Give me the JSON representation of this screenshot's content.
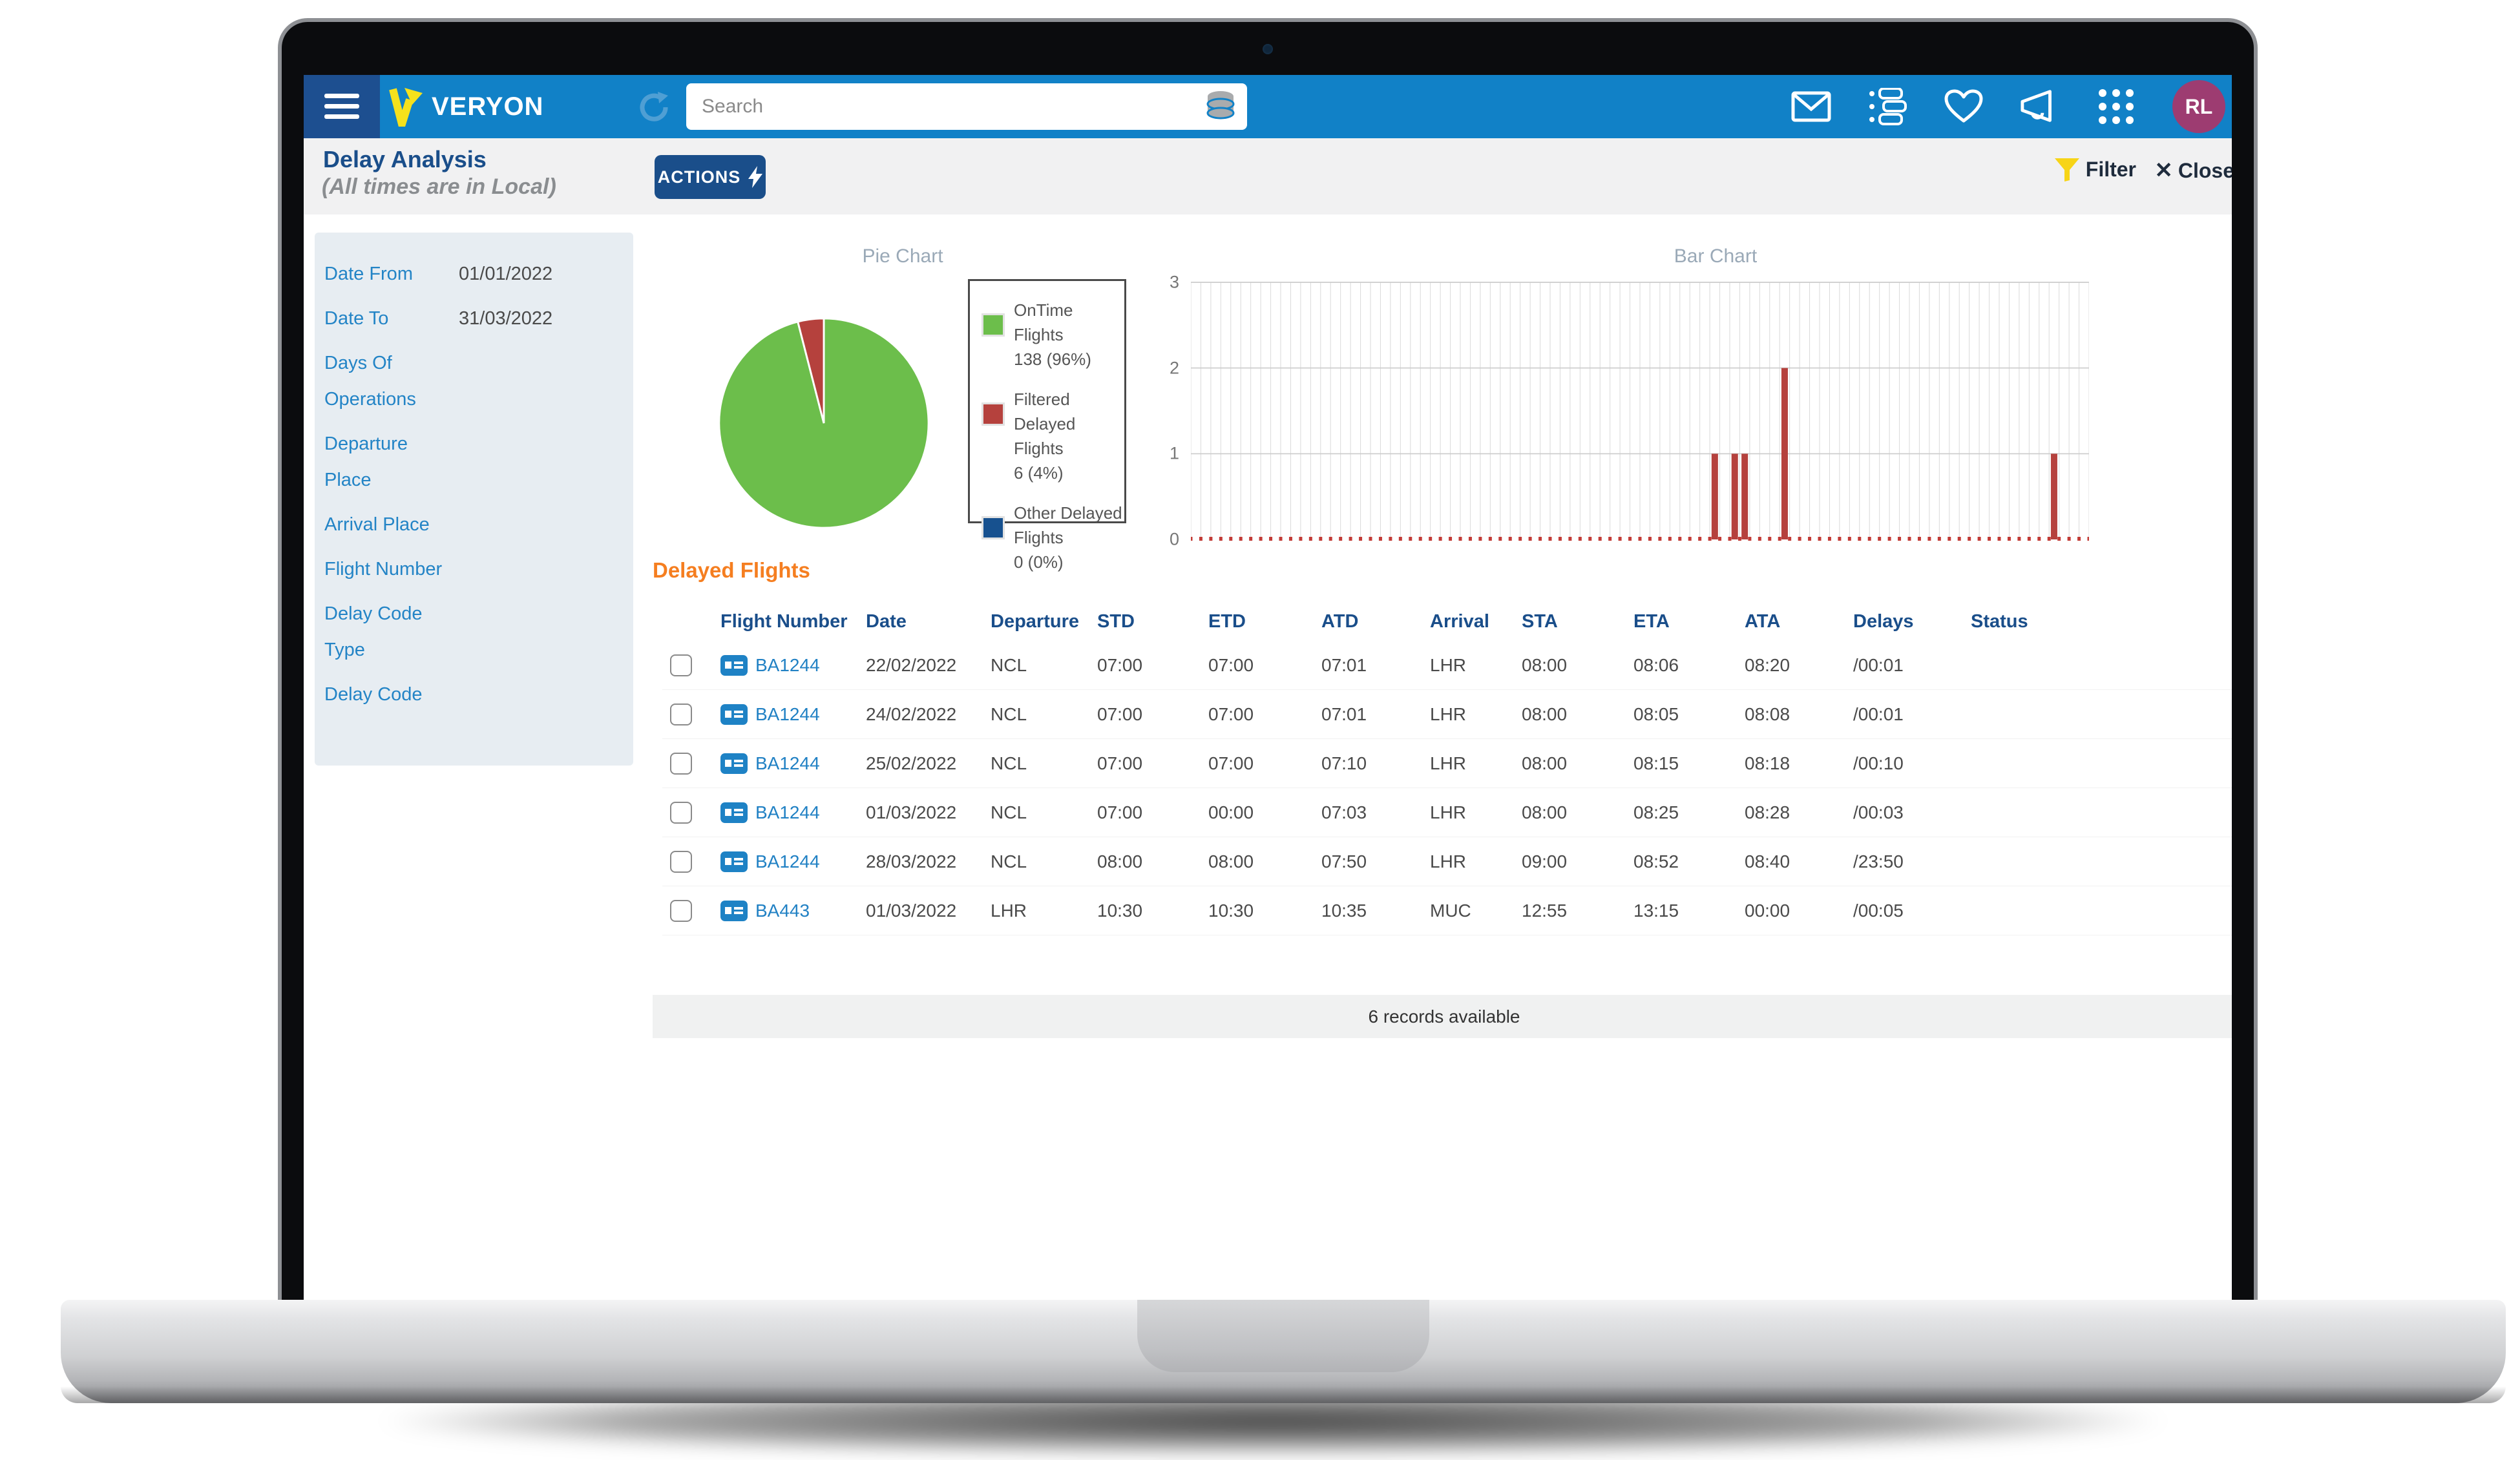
{
  "topbar": {
    "logo_text": "VERYON",
    "search": {
      "placeholder": "Search"
    },
    "icons": [
      "mail-icon",
      "queue-icon",
      "heart-icon",
      "megaphone-icon",
      "apps-grid-icon"
    ],
    "avatar_initials": "RL"
  },
  "page_header": {
    "title": "Delay Analysis",
    "subtitle": "(All times are in Local)",
    "actions_label": "ACTIONS",
    "filter_label": "Filter",
    "close_x": "✕",
    "close_label": "Close"
  },
  "sidebar": {
    "filters": [
      {
        "label": "Date From",
        "value": "01/01/2022"
      },
      {
        "label": "Date To",
        "value": "31/03/2022"
      },
      {
        "label": "Days Of Operations",
        "value": ""
      },
      {
        "label": "Departure Place",
        "value": ""
      },
      {
        "label": "Arrival Place",
        "value": ""
      },
      {
        "label": "Flight Number",
        "value": ""
      },
      {
        "label": "Delay Code Type",
        "value": ""
      },
      {
        "label": "Delay Code",
        "value": ""
      }
    ]
  },
  "colors": {
    "topbar_blue": "#1181c7",
    "navy": "#1a4e8a",
    "link_blue": "#2181c4",
    "orange": "#f57e20",
    "pie_green": "#6cbe4b",
    "pie_red": "#b5413d",
    "pie_navy": "#17518f",
    "avatar_plum": "#9d3c71",
    "funnel_yellow": "#f7d417"
  },
  "chart_data": [
    {
      "type": "pie",
      "title": "Pie Chart",
      "legend_position": "right",
      "slices": [
        {
          "label": "OnTime Flights",
          "value": 138,
          "pct": 96,
          "color": "#6cbe4b"
        },
        {
          "label": "Filtered Delayed Flights",
          "value": 6,
          "pct": 4,
          "color": "#b5413d"
        },
        {
          "label": "Other Delayed Flights",
          "value": 0,
          "pct": 0,
          "color": "#17518f"
        }
      ],
      "legend": [
        {
          "label": "OnTime Flights",
          "count_text": "138 (96%)",
          "color": "#6cbe4b"
        },
        {
          "label": "Filtered Delayed Flights",
          "count_text": "6 (4%)",
          "color": "#b5413d"
        },
        {
          "label": "Other Delayed Flights",
          "count_text": "0 (0%)",
          "color": "#17518f"
        }
      ]
    },
    {
      "type": "bar",
      "title": "Bar Chart",
      "x_range": [
        "01/01/2022",
        "31/03/2022"
      ],
      "num_slots": 90,
      "ylim": [
        0,
        3
      ],
      "yticks": [
        3,
        2,
        1,
        0
      ],
      "grid": true,
      "bar_color": "#b5413d",
      "baseline_style": "red-dotted",
      "bars": [
        {
          "date": "22/02/2022",
          "slot": 52,
          "value": 1
        },
        {
          "date": "24/02/2022",
          "slot": 54,
          "value": 1
        },
        {
          "date": "25/02/2022",
          "slot": 55,
          "value": 1
        },
        {
          "date": "01/03/2022",
          "slot": 59,
          "value": 2
        },
        {
          "date": "28/03/2022",
          "slot": 86,
          "value": 1
        }
      ]
    }
  ],
  "table": {
    "heading": "Delayed Flights",
    "columns": [
      "Flight Number",
      "Date",
      "Departure",
      "STD",
      "ETD",
      "ATD",
      "Arrival",
      "STA",
      "ETA",
      "ATA",
      "Delays",
      "Status"
    ],
    "rows": [
      {
        "flight": "BA1244",
        "date": "22/02/2022",
        "departure": "NCL",
        "std": "07:00",
        "etd": "07:00",
        "atd": "07:01",
        "arrival": "LHR",
        "sta": "08:00",
        "eta": "08:06",
        "ata": "08:20",
        "delays": "/00:01",
        "status": ""
      },
      {
        "flight": "BA1244",
        "date": "24/02/2022",
        "departure": "NCL",
        "std": "07:00",
        "etd": "07:00",
        "atd": "07:01",
        "arrival": "LHR",
        "sta": "08:00",
        "eta": "08:05",
        "ata": "08:08",
        "delays": "/00:01",
        "status": ""
      },
      {
        "flight": "BA1244",
        "date": "25/02/2022",
        "departure": "NCL",
        "std": "07:00",
        "etd": "07:00",
        "atd": "07:10",
        "arrival": "LHR",
        "sta": "08:00",
        "eta": "08:15",
        "ata": "08:18",
        "delays": "/00:10",
        "status": ""
      },
      {
        "flight": "BA1244",
        "date": "01/03/2022",
        "departure": "NCL",
        "std": "07:00",
        "etd": "00:00",
        "atd": "07:03",
        "arrival": "LHR",
        "sta": "08:00",
        "eta": "08:25",
        "ata": "08:28",
        "delays": "/00:03",
        "status": ""
      },
      {
        "flight": "BA1244",
        "date": "28/03/2022",
        "departure": "NCL",
        "std": "08:00",
        "etd": "08:00",
        "atd": "07:50",
        "arrival": "LHR",
        "sta": "09:00",
        "eta": "08:52",
        "ata": "08:40",
        "delays": "/23:50",
        "status": ""
      },
      {
        "flight": "BA443",
        "date": "01/03/2022",
        "departure": "LHR",
        "std": "10:30",
        "etd": "10:30",
        "atd": "10:35",
        "arrival": "MUC",
        "sta": "12:55",
        "eta": "13:15",
        "ata": "00:00",
        "delays": "/00:05",
        "status": ""
      }
    ],
    "footer": "6 records available"
  }
}
